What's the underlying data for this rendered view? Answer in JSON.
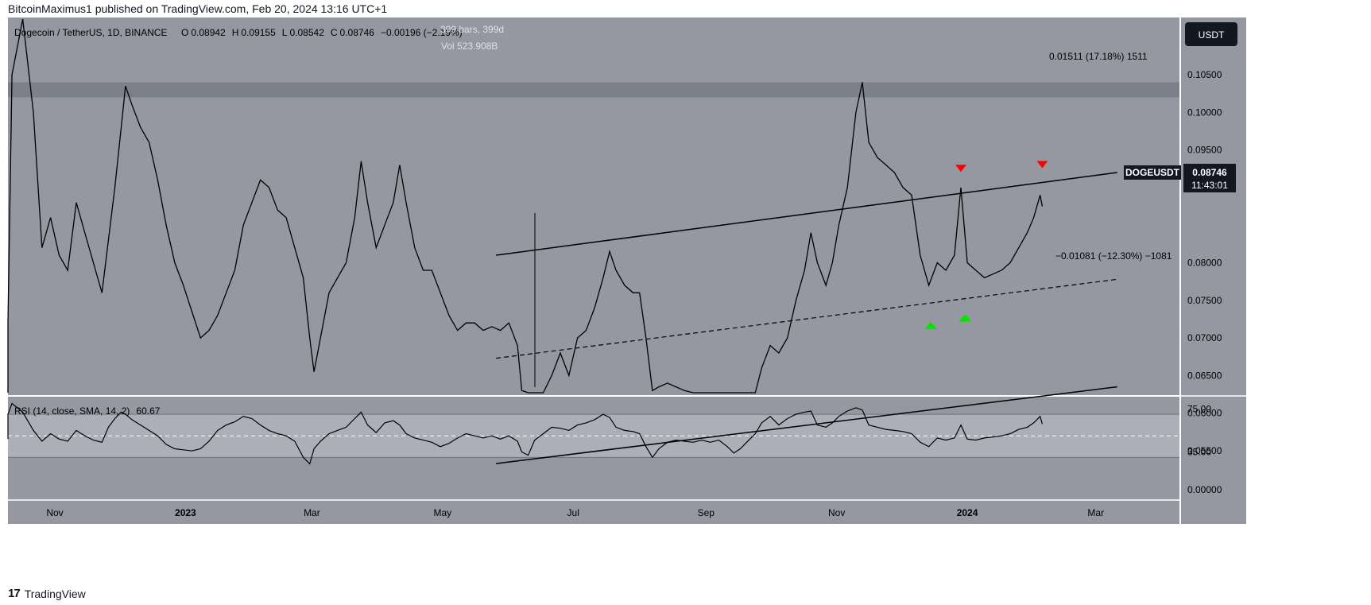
{
  "header": {
    "published": "BitcoinMaximus1 published on TradingView.com, Feb 20, 2024 13:16 UTC+1"
  },
  "footer": {
    "brand": "TradingView",
    "logo_glyph": "17"
  },
  "colors": {
    "pane_bg": "#9598a1",
    "rsi_band": "#b2b5be",
    "resistance_zone": "#787b86",
    "candle": "#000000",
    "label_dark": "#131722",
    "up_arrow": "#00e600",
    "down_arrow": "#ff0000"
  },
  "legend": {
    "symbol": "Dogecoin / TetherUS, 1D, BINANCE",
    "o_label": "O",
    "o": "0.08942",
    "h_label": "H",
    "h": "0.09155",
    "l_label": "L",
    "l": "0.08542",
    "c_label": "C",
    "c": "0.08746",
    "change": "−0.00196 (−2.19%)",
    "bars_info": "399 bars, 399d",
    "vol_info": "Vol 523.908B"
  },
  "currency_button": "USDT",
  "price_tag": {
    "symbol": "DOGEUSDT",
    "price": "0.08746",
    "countdown": "11:43:01"
  },
  "measure_up": "0.01511 (17.18%) 1511",
  "measure_down": "−0.01081 (−12.30%) −1081",
  "rsi_legend": {
    "label": "RSI (14, close, SMA, 14, 2)",
    "value": "60.67"
  },
  "chart_data": [
    {
      "type": "line",
      "title": "Dogecoin / TetherUS, 1D, BINANCE",
      "ylim": [
        0.0505,
        0.11
      ],
      "y_ticks": [
        "0.10500",
        "0.10000",
        "0.09500",
        "0.09000",
        "0.08000",
        "0.07500",
        "0.07000",
        "0.06500",
        "0.06000",
        "0.05500"
      ],
      "x_ticks": [
        "Nov",
        "2023",
        "Mar",
        "May",
        "Jul",
        "Sep",
        "Nov",
        "2024",
        "Mar"
      ],
      "x_tick_days": [
        0,
        61,
        120,
        181,
        242,
        304,
        365,
        426,
        486
      ],
      "price_series": [
        [
          -46,
          0.062
        ],
        [
          -40,
          0.0605
        ],
        [
          -35,
          0.0598
        ],
        [
          -30,
          0.0605
        ],
        [
          -26,
          0.062
        ],
        [
          -24,
          0.072
        ],
        [
          -20,
          0.105
        ],
        [
          -15,
          0.12
        ],
        [
          -10,
          0.1
        ],
        [
          -6,
          0.082
        ],
        [
          -2,
          0.086
        ],
        [
          2,
          0.081
        ],
        [
          6,
          0.079
        ],
        [
          10,
          0.088
        ],
        [
          14,
          0.084
        ],
        [
          18,
          0.08
        ],
        [
          22,
          0.076
        ],
        [
          25,
          0.083
        ],
        [
          28,
          0.09
        ],
        [
          31,
          0.098
        ],
        [
          33,
          0.1035
        ],
        [
          36,
          0.101
        ],
        [
          40,
          0.098
        ],
        [
          44,
          0.096
        ],
        [
          48,
          0.091
        ],
        [
          52,
          0.085
        ],
        [
          56,
          0.08
        ],
        [
          60,
          0.077
        ],
        [
          64,
          0.0735
        ],
        [
          68,
          0.07
        ],
        [
          72,
          0.071
        ],
        [
          76,
          0.073
        ],
        [
          80,
          0.076
        ],
        [
          84,
          0.079
        ],
        [
          88,
          0.085
        ],
        [
          92,
          0.088
        ],
        [
          96,
          0.091
        ],
        [
          100,
          0.09
        ],
        [
          104,
          0.087
        ],
        [
          108,
          0.086
        ],
        [
          112,
          0.082
        ],
        [
          116,
          0.078
        ],
        [
          119,
          0.07
        ],
        [
          121,
          0.0655
        ],
        [
          124,
          0.07
        ],
        [
          128,
          0.076
        ],
        [
          132,
          0.078
        ],
        [
          136,
          0.08
        ],
        [
          140,
          0.086
        ],
        [
          143,
          0.0935
        ],
        [
          146,
          0.088
        ],
        [
          150,
          0.082
        ],
        [
          154,
          0.085
        ],
        [
          158,
          0.088
        ],
        [
          161,
          0.093
        ],
        [
          164,
          0.088
        ],
        [
          168,
          0.082
        ],
        [
          172,
          0.079
        ],
        [
          176,
          0.079
        ],
        [
          180,
          0.076
        ],
        [
          184,
          0.073
        ],
        [
          188,
          0.071
        ],
        [
          192,
          0.072
        ],
        [
          196,
          0.072
        ],
        [
          200,
          0.071
        ],
        [
          204,
          0.0715
        ],
        [
          208,
          0.071
        ],
        [
          212,
          0.072
        ],
        [
          216,
          0.069
        ],
        [
          218,
          0.063
        ],
        [
          221,
          0.0595
        ],
        [
          224,
          0.0615
        ],
        [
          228,
          0.061
        ],
        [
          232,
          0.065
        ],
        [
          236,
          0.068
        ],
        [
          240,
          0.065
        ],
        [
          244,
          0.07
        ],
        [
          248,
          0.071
        ],
        [
          252,
          0.074
        ],
        [
          256,
          0.078
        ],
        [
          259,
          0.0815
        ],
        [
          262,
          0.079
        ],
        [
          266,
          0.077
        ],
        [
          270,
          0.076
        ],
        [
          273,
          0.076
        ],
        [
          276,
          0.07
        ],
        [
          279,
          0.063
        ],
        [
          282,
          0.0635
        ],
        [
          286,
          0.064
        ],
        [
          290,
          0.0635
        ],
        [
          294,
          0.063
        ],
        [
          298,
          0.0615
        ],
        [
          302,
          0.062
        ],
        [
          306,
          0.0615
        ],
        [
          310,
          0.0625
        ],
        [
          314,
          0.061
        ],
        [
          317,
          0.0595
        ],
        [
          320,
          0.059
        ],
        [
          324,
          0.0605
        ],
        [
          327,
          0.062
        ],
        [
          330,
          0.066
        ],
        [
          334,
          0.069
        ],
        [
          338,
          0.068
        ],
        [
          342,
          0.07
        ],
        [
          346,
          0.075
        ],
        [
          350,
          0.079
        ],
        [
          353,
          0.084
        ],
        [
          356,
          0.08
        ],
        [
          360,
          0.077
        ],
        [
          363,
          0.08
        ],
        [
          366,
          0.085
        ],
        [
          370,
          0.09
        ],
        [
          374,
          0.1
        ],
        [
          377,
          0.104
        ],
        [
          380,
          0.096
        ],
        [
          384,
          0.094
        ],
        [
          388,
          0.093
        ],
        [
          392,
          0.092
        ],
        [
          396,
          0.09
        ],
        [
          400,
          0.089
        ],
        [
          404,
          0.081
        ],
        [
          408,
          0.077
        ],
        [
          412,
          0.08
        ],
        [
          416,
          0.079
        ],
        [
          420,
          0.081
        ],
        [
          423,
          0.09
        ],
        [
          426,
          0.08
        ],
        [
          430,
          0.079
        ],
        [
          434,
          0.078
        ],
        [
          438,
          0.0785
        ],
        [
          442,
          0.079
        ],
        [
          446,
          0.08
        ],
        [
          450,
          0.082
        ],
        [
          454,
          0.084
        ],
        [
          457,
          0.086
        ],
        [
          460,
          0.089
        ],
        [
          461,
          0.0875
        ]
      ],
      "channel": {
        "upper": [
          [
            206,
            0.081
          ],
          [
            496,
            0.092
          ]
        ],
        "middle": [
          [
            206,
            0.0673
          ],
          [
            496,
            0.0778
          ]
        ],
        "lower": [
          [
            206,
            0.0533
          ],
          [
            496,
            0.0635
          ]
        ]
      },
      "resistance_zone": [
        0.102,
        0.104
      ],
      "down_arrows": [
        [
          423,
          0.0925
        ],
        [
          461,
          0.093
        ]
      ],
      "up_arrows": [
        [
          409,
          0.0717
        ],
        [
          425,
          0.0727
        ]
      ]
    },
    {
      "type": "line",
      "title": "RSI (14, close, SMA, 14, 2)",
      "ylim": [
        -5,
        90
      ],
      "band": [
        30,
        70
      ],
      "y_ticks": [
        "75.00",
        "35.00",
        "0.00000"
      ],
      "rsi_series": [
        [
          -46,
          50
        ],
        [
          -40,
          48
        ],
        [
          -35,
          47
        ],
        [
          -30,
          50
        ],
        [
          -26,
          55
        ],
        [
          -24,
          70
        ],
        [
          -20,
          80
        ],
        [
          -15,
          72
        ],
        [
          -10,
          55
        ],
        [
          -6,
          45
        ],
        [
          -2,
          52
        ],
        [
          2,
          47
        ],
        [
          6,
          45
        ],
        [
          10,
          55
        ],
        [
          14,
          50
        ],
        [
          18,
          46
        ],
        [
          22,
          44
        ],
        [
          25,
          58
        ],
        [
          28,
          66
        ],
        [
          31,
          72
        ],
        [
          33,
          70
        ],
        [
          36,
          65
        ],
        [
          40,
          60
        ],
        [
          44,
          55
        ],
        [
          48,
          50
        ],
        [
          52,
          42
        ],
        [
          56,
          38
        ],
        [
          60,
          37
        ],
        [
          64,
          36
        ],
        [
          68,
          38
        ],
        [
          72,
          45
        ],
        [
          76,
          55
        ],
        [
          80,
          60
        ],
        [
          84,
          63
        ],
        [
          88,
          68
        ],
        [
          92,
          66
        ],
        [
          96,
          60
        ],
        [
          100,
          55
        ],
        [
          104,
          52
        ],
        [
          108,
          50
        ],
        [
          112,
          45
        ],
        [
          116,
          30
        ],
        [
          119,
          24
        ],
        [
          121,
          38
        ],
        [
          124,
          45
        ],
        [
          128,
          52
        ],
        [
          132,
          55
        ],
        [
          136,
          58
        ],
        [
          140,
          66
        ],
        [
          143,
          72
        ],
        [
          146,
          60
        ],
        [
          150,
          53
        ],
        [
          154,
          62
        ],
        [
          158,
          64
        ],
        [
          161,
          60
        ],
        [
          164,
          52
        ],
        [
          168,
          48
        ],
        [
          172,
          46
        ],
        [
          176,
          44
        ],
        [
          180,
          40
        ],
        [
          184,
          43
        ],
        [
          188,
          48
        ],
        [
          192,
          52
        ],
        [
          196,
          50
        ],
        [
          200,
          48
        ],
        [
          204,
          50
        ],
        [
          208,
          47
        ],
        [
          212,
          50
        ],
        [
          216,
          45
        ],
        [
          218,
          35
        ],
        [
          221,
          32
        ],
        [
          224,
          46
        ],
        [
          228,
          52
        ],
        [
          232,
          58
        ],
        [
          236,
          57
        ],
        [
          240,
          55
        ],
        [
          244,
          60
        ],
        [
          248,
          62
        ],
        [
          252,
          65
        ],
        [
          256,
          70
        ],
        [
          259,
          67
        ],
        [
          262,
          58
        ],
        [
          266,
          55
        ],
        [
          270,
          54
        ],
        [
          273,
          52
        ],
        [
          276,
          40
        ],
        [
          279,
          30
        ],
        [
          282,
          38
        ],
        [
          286,
          44
        ],
        [
          290,
          46
        ],
        [
          294,
          45
        ],
        [
          298,
          44
        ],
        [
          302,
          46
        ],
        [
          306,
          44
        ],
        [
          310,
          46
        ],
        [
          314,
          40
        ],
        [
          317,
          34
        ],
        [
          320,
          38
        ],
        [
          324,
          46
        ],
        [
          327,
          52
        ],
        [
          330,
          62
        ],
        [
          334,
          68
        ],
        [
          338,
          60
        ],
        [
          342,
          66
        ],
        [
          346,
          70
        ],
        [
          350,
          72
        ],
        [
          353,
          73
        ],
        [
          356,
          60
        ],
        [
          360,
          58
        ],
        [
          363,
          62
        ],
        [
          366,
          68
        ],
        [
          370,
          73
        ],
        [
          374,
          76
        ],
        [
          377,
          74
        ],
        [
          380,
          60
        ],
        [
          384,
          58
        ],
        [
          388,
          56
        ],
        [
          392,
          55
        ],
        [
          396,
          54
        ],
        [
          400,
          52
        ],
        [
          404,
          44
        ],
        [
          408,
          40
        ],
        [
          412,
          48
        ],
        [
          416,
          46
        ],
        [
          420,
          48
        ],
        [
          423,
          60
        ],
        [
          426,
          47
        ],
        [
          430,
          46
        ],
        [
          434,
          48
        ],
        [
          438,
          49
        ],
        [
          442,
          50
        ],
        [
          446,
          52
        ],
        [
          450,
          56
        ],
        [
          454,
          58
        ],
        [
          457,
          62
        ],
        [
          460,
          68
        ],
        [
          461,
          61
        ]
      ]
    }
  ]
}
